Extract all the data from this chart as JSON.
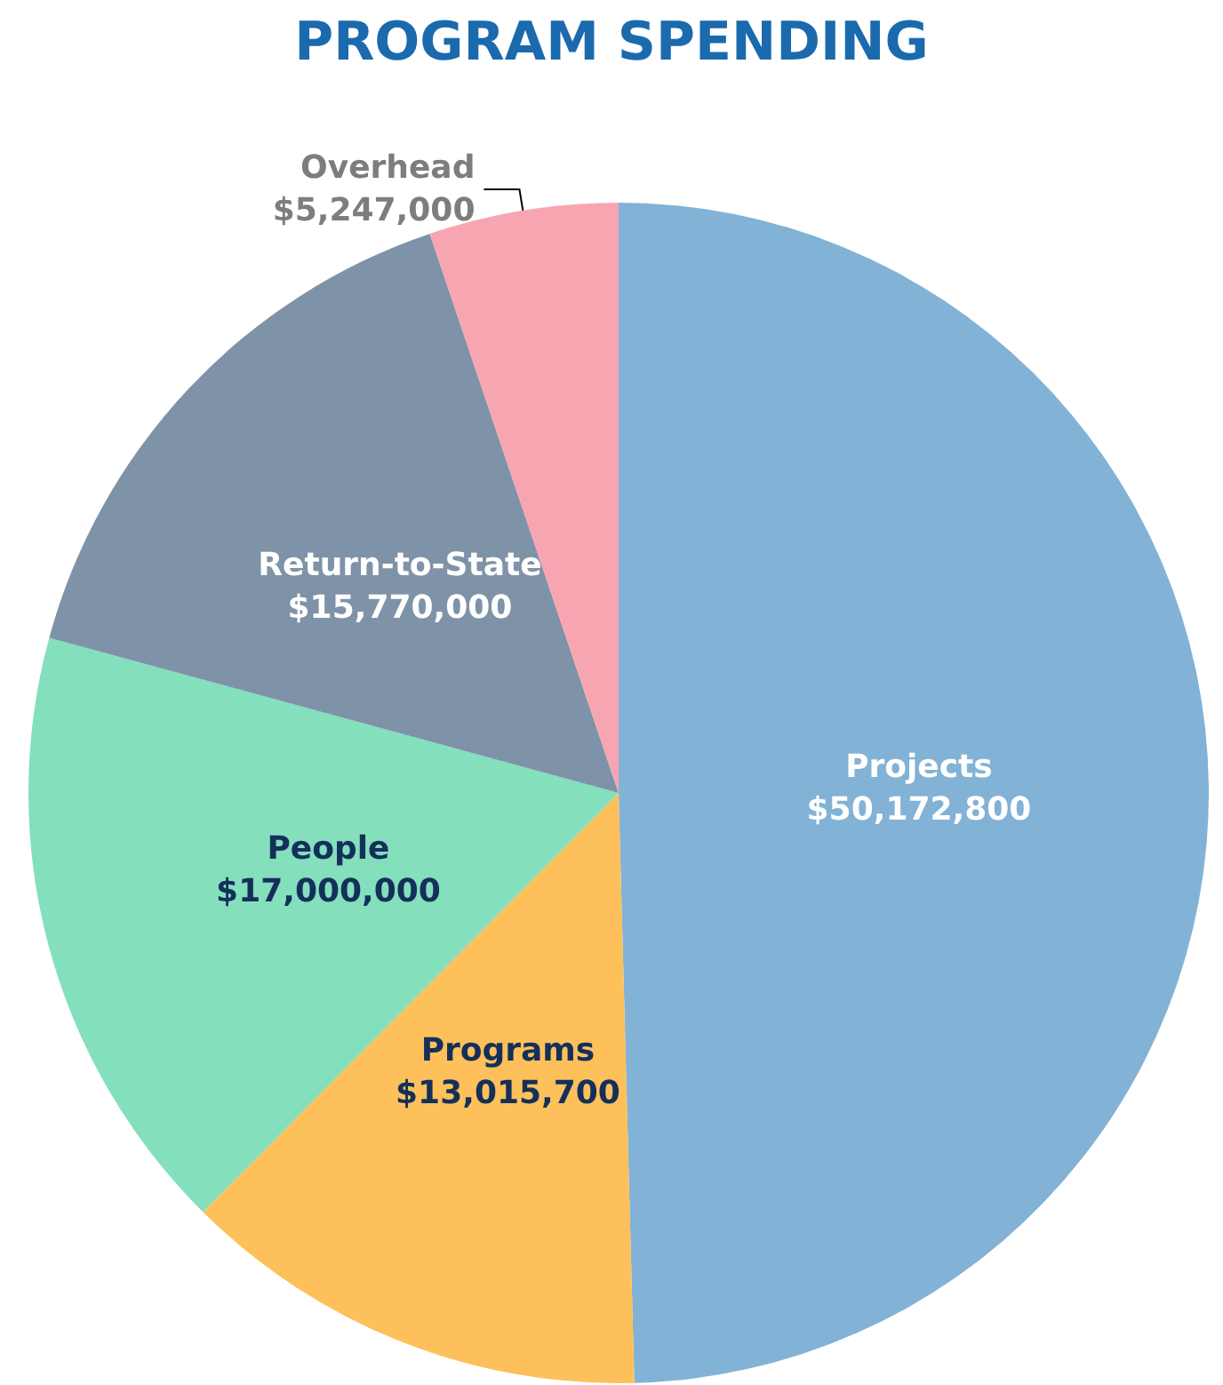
{
  "chart_data": {
    "type": "pie",
    "title": "PROGRAM SPENDING",
    "categories": [
      "Projects",
      "Programs",
      "People",
      "Return-to-State",
      "Overhead"
    ],
    "values": [
      50172800,
      13015700,
      17000000,
      15770000,
      5247000
    ],
    "value_labels": [
      "$50,172,800",
      "$13,015,700",
      "$17,000,000",
      "$15,770,000",
      "$5,247,000"
    ],
    "colors": [
      "#82b2d6",
      "#fdc05a",
      "#84dfbd",
      "#7f93a8",
      "#f8a5b2"
    ],
    "legend": false
  }
}
